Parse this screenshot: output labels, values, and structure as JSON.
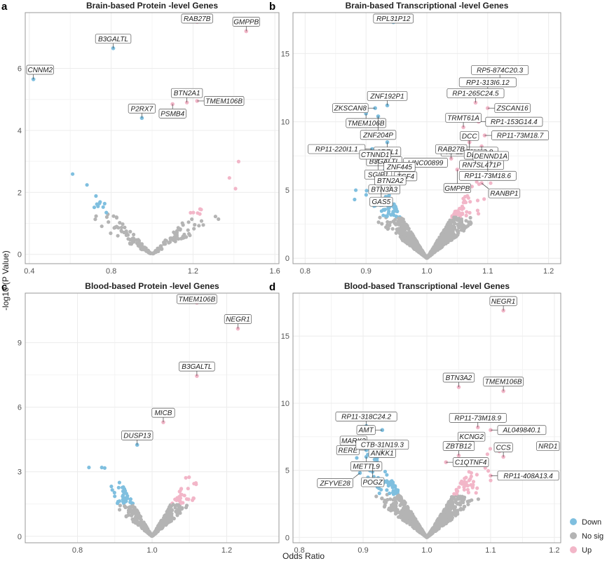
{
  "ylabel": "-log10 (P Value)",
  "xlabel": "Odds Ratio",
  "legend": {
    "placement": "bottom-right",
    "items": [
      {
        "label": "Down",
        "color": "#7fbfdf"
      },
      {
        "label": "No sig",
        "color": "#b4b4b4"
      },
      {
        "label": "Up",
        "color": "#f2b6c8"
      }
    ]
  },
  "colors": {
    "down": "#7fbfdf",
    "nosig": "#b4b4b4",
    "up": "#f2b6c8",
    "grid": "#ececec",
    "panel_border": "#999999"
  },
  "chart_data": [
    {
      "panel": "a",
      "type": "scatter",
      "title": "Brain-based Protein -level Genes",
      "xlim": [
        0.38,
        1.62
      ],
      "ylim": [
        -0.3,
        7.8
      ],
      "xticks": [
        "0.4",
        "0.8",
        "1.2",
        "1.6"
      ],
      "xtick_values": [
        0.4,
        0.8,
        1.2,
        1.6
      ],
      "yticks": [
        "0",
        "2",
        "4",
        "6"
      ],
      "ytick_values": [
        0,
        2,
        4,
        6
      ],
      "labeled_points": [
        {
          "gene": "RAB27B",
          "x": 1.22,
          "y": 7.5,
          "group": "up"
        },
        {
          "gene": "GMPPB",
          "x": 1.46,
          "y": 7.2,
          "group": "up"
        },
        {
          "gene": "B3GALTL",
          "x": 0.81,
          "y": 6.65,
          "group": "down"
        },
        {
          "gene": "CNNM2",
          "x": 0.42,
          "y": 5.65,
          "group": "down"
        },
        {
          "gene": "BTN2A1",
          "x": 1.17,
          "y": 4.9,
          "group": "up"
        },
        {
          "gene": "TMEM106B",
          "x": 1.22,
          "y": 4.95,
          "group": "up"
        },
        {
          "gene": "PSMB4",
          "x": 1.1,
          "y": 4.85,
          "group": "up"
        },
        {
          "gene": "P2RX7",
          "x": 0.95,
          "y": 4.4,
          "group": "down"
        }
      ]
    },
    {
      "panel": "b",
      "type": "scatter",
      "title": "Brain-based Transcriptional -level Genes",
      "xlim": [
        0.78,
        1.22
      ],
      "ylim": [
        -0.4,
        18.0
      ],
      "xticks": [
        "0.8",
        "0.9",
        "1.0",
        "1.1",
        "1.2"
      ],
      "xtick_values": [
        0.8,
        0.9,
        1.0,
        1.1,
        1.2
      ],
      "yticks": [
        "0",
        "5",
        "10",
        "15"
      ],
      "ytick_values": [
        0,
        5,
        10,
        15
      ],
      "labeled_points": [
        {
          "gene": "RPL31P12",
          "x": 0.945,
          "y": 17.3,
          "group": "down"
        },
        {
          "gene": "RP5-874C20.3",
          "x": 1.12,
          "y": 13.1,
          "group": "up"
        },
        {
          "gene": "RP1-313I6.12",
          "x": 1.1,
          "y": 12.2,
          "group": "up"
        },
        {
          "gene": "ZNF192P1",
          "x": 0.935,
          "y": 11.2,
          "group": "down"
        },
        {
          "gene": "ZKSCAN8",
          "x": 0.915,
          "y": 11.0,
          "group": "down"
        },
        {
          "gene": "RP1-265C24.5",
          "x": 1.08,
          "y": 11.4,
          "group": "up"
        },
        {
          "gene": "ZSCAN16",
          "x": 1.1,
          "y": 11.0,
          "group": "up"
        },
        {
          "gene": "TMEM106B",
          "x": 0.9,
          "y": 10.6,
          "group": "down"
        },
        {
          "gene": "ZNF204P",
          "x": 0.92,
          "y": 10.4,
          "group": "down"
        },
        {
          "gene": "RP1-153G14.4",
          "x": 1.085,
          "y": 10.0,
          "group": "up"
        },
        {
          "gene": "TRMT61A",
          "x": 1.06,
          "y": 9.6,
          "group": "up"
        },
        {
          "gene": "RP11-73M18.7",
          "x": 1.095,
          "y": 9.0,
          "group": "up"
        },
        {
          "gene": "AREL1",
          "x": 0.935,
          "y": 8.5,
          "group": "down"
        },
        {
          "gene": "RP11-73M18.8",
          "x": 1.07,
          "y": 8.5,
          "group": "up"
        },
        {
          "gene": "RN7SL471P",
          "x": 1.09,
          "y": 8.2,
          "group": "up"
        },
        {
          "gene": "RP11-220I1.1",
          "x": 0.91,
          "y": 8.0,
          "group": "down"
        },
        {
          "gene": "B3GALTL",
          "x": 0.93,
          "y": 7.8,
          "group": "down"
        },
        {
          "gene": "SGIP1",
          "x": 0.92,
          "y": 7.5,
          "group": "down"
        },
        {
          "gene": "DCC",
          "x": 1.07,
          "y": 7.5,
          "group": "up"
        },
        {
          "gene": "RP11-73M18.6",
          "x": 1.1,
          "y": 7.4,
          "group": "up"
        },
        {
          "gene": "RAB27B",
          "x": 1.04,
          "y": 7.3,
          "group": "up"
        },
        {
          "gene": "LINC00899",
          "x": 0.95,
          "y": 7.0,
          "group": "down"
        },
        {
          "gene": "CTNND1",
          "x": 0.915,
          "y": 6.9,
          "group": "down"
        },
        {
          "gene": "DLST",
          "x": 1.08,
          "y": 6.9,
          "group": "up"
        },
        {
          "gene": "DENND1A",
          "x": 1.105,
          "y": 6.8,
          "group": "up"
        },
        {
          "gene": "TCF4",
          "x": 0.965,
          "y": 6.7,
          "group": "down"
        },
        {
          "gene": "BTN3A3",
          "x": 0.93,
          "y": 6.4,
          "group": "down"
        },
        {
          "gene": "GMPPB",
          "x": 1.05,
          "y": 6.5,
          "group": "up"
        },
        {
          "gene": "ZNF445",
          "x": 0.955,
          "y": 6.0,
          "group": "down"
        },
        {
          "gene": "GAS5",
          "x": 0.925,
          "y": 5.5,
          "group": "down"
        },
        {
          "gene": "RANBP1",
          "x": 1.09,
          "y": 5.5,
          "group": "up"
        },
        {
          "gene": "BTN2A2",
          "x": 0.94,
          "y": 5.0,
          "group": "down"
        }
      ]
    },
    {
      "panel": "c",
      "type": "scatter",
      "title": "Blood-based Protein -level Genes",
      "xlim": [
        0.66,
        1.34
      ],
      "ylim": [
        -0.3,
        11.3
      ],
      "xticks": [
        "0.8",
        "1.0",
        "1.2"
      ],
      "xtick_values": [
        0.8,
        1.0,
        1.2
      ],
      "yticks": [
        "0",
        "3",
        "6",
        "9"
      ],
      "ytick_values": [
        0,
        3,
        6,
        9
      ],
      "labeled_points": [
        {
          "gene": "TMEM106B",
          "x": 1.12,
          "y": 10.85,
          "group": "up"
        },
        {
          "gene": "NEGR1",
          "x": 1.23,
          "y": 9.65,
          "group": "up"
        },
        {
          "gene": "B3GALTL",
          "x": 1.12,
          "y": 7.45,
          "group": "up"
        },
        {
          "gene": "MICB",
          "x": 1.03,
          "y": 5.3,
          "group": "up"
        },
        {
          "gene": "DUSP13",
          "x": 0.96,
          "y": 4.25,
          "group": "down"
        }
      ]
    },
    {
      "panel": "d",
      "type": "scatter",
      "title": "Blood-based Transcriptional -level Genes",
      "xlim": [
        0.79,
        1.21
      ],
      "ylim": [
        -0.4,
        18.2
      ],
      "xticks": [
        "0.8",
        "0.9",
        "1.0",
        "1.1",
        "1.2"
      ],
      "xtick_values": [
        0.8,
        0.9,
        1.0,
        1.1,
        1.2
      ],
      "yticks": [
        "0",
        "5",
        "10",
        "15"
      ],
      "ytick_values": [
        0,
        5,
        10,
        15
      ],
      "labeled_points": [
        {
          "gene": "NEGR1",
          "x": 1.12,
          "y": 16.9,
          "group": "up"
        },
        {
          "gene": "BTN3A2",
          "x": 1.05,
          "y": 11.2,
          "group": "up"
        },
        {
          "gene": "TMEM106B",
          "x": 1.12,
          "y": 10.9,
          "group": "up"
        },
        {
          "gene": "RP11-318C24.2",
          "x": 0.905,
          "y": 8.3,
          "group": "down"
        },
        {
          "gene": "AMT",
          "x": 0.93,
          "y": 8.0,
          "group": "down"
        },
        {
          "gene": "RP11-73M18.9",
          "x": 1.08,
          "y": 8.2,
          "group": "up"
        },
        {
          "gene": "AL049840.1",
          "x": 1.1,
          "y": 8.0,
          "group": "up"
        },
        {
          "gene": "MARK3",
          "x": 0.885,
          "y": 6.5,
          "group": "down"
        },
        {
          "gene": "RERE",
          "x": 0.905,
          "y": 6.5,
          "group": "down"
        },
        {
          "gene": "ANKK1",
          "x": 0.93,
          "y": 7.0,
          "group": "down"
        },
        {
          "gene": "KCNG2",
          "x": 1.07,
          "y": 6.8,
          "group": "up"
        },
        {
          "gene": "NRD1",
          "x": 1.18,
          "y": 6.8,
          "group": "up"
        },
        {
          "gene": "METTL9",
          "x": 0.905,
          "y": 6.0,
          "group": "down"
        },
        {
          "gene": "CTB-31N19.3",
          "x": 0.93,
          "y": 6.2,
          "group": "down"
        },
        {
          "gene": "ZBTB12",
          "x": 1.05,
          "y": 6.1,
          "group": "up"
        },
        {
          "gene": "CCS",
          "x": 1.12,
          "y": 6.0,
          "group": "up"
        },
        {
          "gene": "POGZ",
          "x": 0.915,
          "y": 5.5,
          "group": "down"
        },
        {
          "gene": "C1QTNF4",
          "x": 1.03,
          "y": 5.6,
          "group": "up"
        },
        {
          "gene": "ZFYVE28",
          "x": 0.895,
          "y": 4.8,
          "group": "down"
        },
        {
          "gene": "RP11-408A13.4",
          "x": 1.1,
          "y": 4.6,
          "group": "up"
        }
      ]
    }
  ]
}
